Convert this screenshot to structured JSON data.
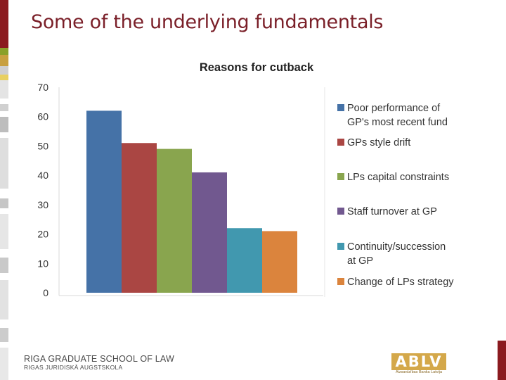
{
  "slide": {
    "title": "Some of the underlying fundamentals",
    "footer": {
      "school_name": "RIGA GRADUATE SCHOOL OF LAW",
      "school_name_lv": "RIGAS JURIDISKĀ AUGSTSKOLA"
    },
    "logo": {
      "letters": "ABLV",
      "subtitle": "Aizsardzības Banka Latvija"
    }
  },
  "colors": {
    "title": "#7a1f28",
    "accent_dark_red": "#8b1a1f",
    "accent_olive": "#8aa02a",
    "accent_gold": "#d4a84a"
  },
  "chart_data": {
    "type": "bar",
    "title": "Reasons for cutback",
    "xlabel": "",
    "ylabel": "",
    "ylim": [
      0,
      70
    ],
    "yticks": [
      0,
      10,
      20,
      30,
      40,
      50,
      60,
      70
    ],
    "grid": false,
    "legend_placement": "right",
    "series": [
      {
        "name": "Poor performance of GP's most recent fund",
        "value": 62,
        "color": "#4572a7"
      },
      {
        "name": "GPs style drift",
        "value": 51,
        "color": "#aa4643"
      },
      {
        "name": "LPs capital constraints",
        "value": 49,
        "color": "#89a54e"
      },
      {
        "name": "Staff turnover at GP",
        "value": 41,
        "color": "#71588f"
      },
      {
        "name": "Continuity/succession at GP",
        "value": 22,
        "color": "#4198af"
      },
      {
        "name": "Change of LPs strategy",
        "value": 21,
        "color": "#db843d"
      }
    ]
  }
}
